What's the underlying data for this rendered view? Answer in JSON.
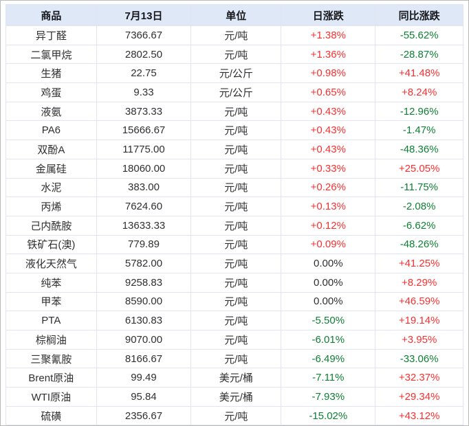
{
  "page": {
    "background": "#ffffff",
    "outer_border_color": "#b9b9b9"
  },
  "colors": {
    "header_bg": "#dfe8f6",
    "grid_line": "#e2e5ef",
    "up_red": "#fb2f2f",
    "down_green": "#0d7e33",
    "flat_black": "#2f2f2f",
    "header_text": "#15161b",
    "body_text": "#2f2f2f"
  },
  "table": {
    "columns": [
      {
        "key": "name",
        "label": "商品"
      },
      {
        "key": "price",
        "label": "7月13日"
      },
      {
        "key": "unit",
        "label": "单位"
      },
      {
        "key": "day",
        "label": "日涨跌"
      },
      {
        "key": "yoy",
        "label": "同比涨跌"
      }
    ],
    "rows": [
      {
        "name": "异丁醛",
        "price": "7366.67",
        "unit": "元/吨",
        "day_change": "+1.38%",
        "day_dir": "up",
        "yoy_change": "-55.62%",
        "yoy_dir": "down"
      },
      {
        "name": "二氯甲烷",
        "price": "2802.50",
        "unit": "元/吨",
        "day_change": "+1.36%",
        "day_dir": "up",
        "yoy_change": "-28.87%",
        "yoy_dir": "down"
      },
      {
        "name": "生猪",
        "price": "22.75",
        "unit": "元/公斤",
        "day_change": "+0.98%",
        "day_dir": "up",
        "yoy_change": "+41.48%",
        "yoy_dir": "up"
      },
      {
        "name": "鸡蛋",
        "price": "9.33",
        "unit": "元/公斤",
        "day_change": "+0.65%",
        "day_dir": "up",
        "yoy_change": "+8.24%",
        "yoy_dir": "up"
      },
      {
        "name": "液氨",
        "price": "3873.33",
        "unit": "元/吨",
        "day_change": "+0.43%",
        "day_dir": "up",
        "yoy_change": "-12.96%",
        "yoy_dir": "down"
      },
      {
        "name": "PA6",
        "price": "15666.67",
        "unit": "元/吨",
        "day_change": "+0.43%",
        "day_dir": "up",
        "yoy_change": "-1.47%",
        "yoy_dir": "down"
      },
      {
        "name": "双酚A",
        "price": "11775.00",
        "unit": "元/吨",
        "day_change": "+0.43%",
        "day_dir": "up",
        "yoy_change": "-48.36%",
        "yoy_dir": "down"
      },
      {
        "name": "金属硅",
        "price": "18060.00",
        "unit": "元/吨",
        "day_change": "+0.33%",
        "day_dir": "up",
        "yoy_change": "+25.05%",
        "yoy_dir": "up"
      },
      {
        "name": "水泥",
        "price": "383.00",
        "unit": "元/吨",
        "day_change": "+0.26%",
        "day_dir": "up",
        "yoy_change": "-11.75%",
        "yoy_dir": "down"
      },
      {
        "name": "丙烯",
        "price": "7624.60",
        "unit": "元/吨",
        "day_change": "+0.13%",
        "day_dir": "up",
        "yoy_change": "-2.08%",
        "yoy_dir": "down"
      },
      {
        "name": "己内酰胺",
        "price": "13633.33",
        "unit": "元/吨",
        "day_change": "+0.12%",
        "day_dir": "up",
        "yoy_change": "-6.62%",
        "yoy_dir": "down"
      },
      {
        "name": "铁矿石(澳)",
        "price": "779.89",
        "unit": "元/吨",
        "day_change": "+0.09%",
        "day_dir": "up",
        "yoy_change": "-48.26%",
        "yoy_dir": "down"
      },
      {
        "name": "液化天然气",
        "price": "5782.00",
        "unit": "元/吨",
        "day_change": "0.00%",
        "day_dir": "flat",
        "yoy_change": "+41.25%",
        "yoy_dir": "up"
      },
      {
        "name": "纯苯",
        "price": "9258.83",
        "unit": "元/吨",
        "day_change": "0.00%",
        "day_dir": "flat",
        "yoy_change": "+8.29%",
        "yoy_dir": "up"
      },
      {
        "name": "甲苯",
        "price": "8590.00",
        "unit": "元/吨",
        "day_change": "0.00%",
        "day_dir": "flat",
        "yoy_change": "+46.59%",
        "yoy_dir": "up"
      },
      {
        "name": "PTA",
        "price": "6130.83",
        "unit": "元/吨",
        "day_change": "-5.50%",
        "day_dir": "down",
        "yoy_change": "+19.14%",
        "yoy_dir": "up"
      },
      {
        "name": "棕榈油",
        "price": "9070.00",
        "unit": "元/吨",
        "day_change": "-6.01%",
        "day_dir": "down",
        "yoy_change": "+3.95%",
        "yoy_dir": "up"
      },
      {
        "name": "三聚氰胺",
        "price": "8166.67",
        "unit": "元/吨",
        "day_change": "-6.49%",
        "day_dir": "down",
        "yoy_change": "-33.06%",
        "yoy_dir": "down"
      },
      {
        "name": "Brent原油",
        "price": "99.49",
        "unit": "美元/桶",
        "day_change": "-7.11%",
        "day_dir": "down",
        "yoy_change": "+32.37%",
        "yoy_dir": "up"
      },
      {
        "name": "WTI原油",
        "price": "95.84",
        "unit": "美元/桶",
        "day_change": "-7.93%",
        "day_dir": "down",
        "yoy_change": "+29.34%",
        "yoy_dir": "up"
      },
      {
        "name": "硫磺",
        "price": "2356.67",
        "unit": "元/吨",
        "day_change": "-15.02%",
        "day_dir": "down",
        "yoy_change": "+43.12%",
        "yoy_dir": "up"
      }
    ]
  },
  "chart_data": {
    "type": "table",
    "title": "",
    "columns": [
      "商品",
      "7月13日",
      "单位",
      "日涨跌",
      "同比涨跌"
    ],
    "rows": [
      [
        "异丁醛",
        "7366.67",
        "元/吨",
        "+1.38%",
        "-55.62%"
      ],
      [
        "二氯甲烷",
        "2802.50",
        "元/吨",
        "+1.36%",
        "-28.87%"
      ],
      [
        "生猪",
        "22.75",
        "元/公斤",
        "+0.98%",
        "+41.48%"
      ],
      [
        "鸡蛋",
        "9.33",
        "元/公斤",
        "+0.65%",
        "+8.24%"
      ],
      [
        "液氨",
        "3873.33",
        "元/吨",
        "+0.43%",
        "-12.96%"
      ],
      [
        "PA6",
        "15666.67",
        "元/吨",
        "+0.43%",
        "-1.47%"
      ],
      [
        "双酚A",
        "11775.00",
        "元/吨",
        "+0.43%",
        "-48.36%"
      ],
      [
        "金属硅",
        "18060.00",
        "元/吨",
        "+0.33%",
        "+25.05%"
      ],
      [
        "水泥",
        "383.00",
        "元/吨",
        "+0.26%",
        "-11.75%"
      ],
      [
        "丙烯",
        "7624.60",
        "元/吨",
        "+0.13%",
        "-2.08%"
      ],
      [
        "己内酰胺",
        "13633.33",
        "元/吨",
        "+0.12%",
        "-6.62%"
      ],
      [
        "铁矿石(澳)",
        "779.89",
        "元/吨",
        "+0.09%",
        "-48.26%"
      ],
      [
        "液化天然气",
        "5782.00",
        "元/吨",
        "0.00%",
        "+41.25%"
      ],
      [
        "纯苯",
        "9258.83",
        "元/吨",
        "0.00%",
        "+8.29%"
      ],
      [
        "甲苯",
        "8590.00",
        "元/吨",
        "0.00%",
        "+46.59%"
      ],
      [
        "PTA",
        "6130.83",
        "元/吨",
        "-5.50%",
        "+19.14%"
      ],
      [
        "棕榈油",
        "9070.00",
        "元/吨",
        "-6.01%",
        "+3.95%"
      ],
      [
        "三聚氰胺",
        "8166.67",
        "元/吨",
        "-6.49%",
        "-33.06%"
      ],
      [
        "Brent原油",
        "99.49",
        "美元/桶",
        "-7.11%",
        "+32.37%"
      ],
      [
        "WTI原油",
        "95.84",
        "美元/桶",
        "-7.93%",
        "+29.34%"
      ],
      [
        "硫磺",
        "2356.67",
        "元/吨",
        "-15.02%",
        "+43.12%"
      ]
    ]
  }
}
